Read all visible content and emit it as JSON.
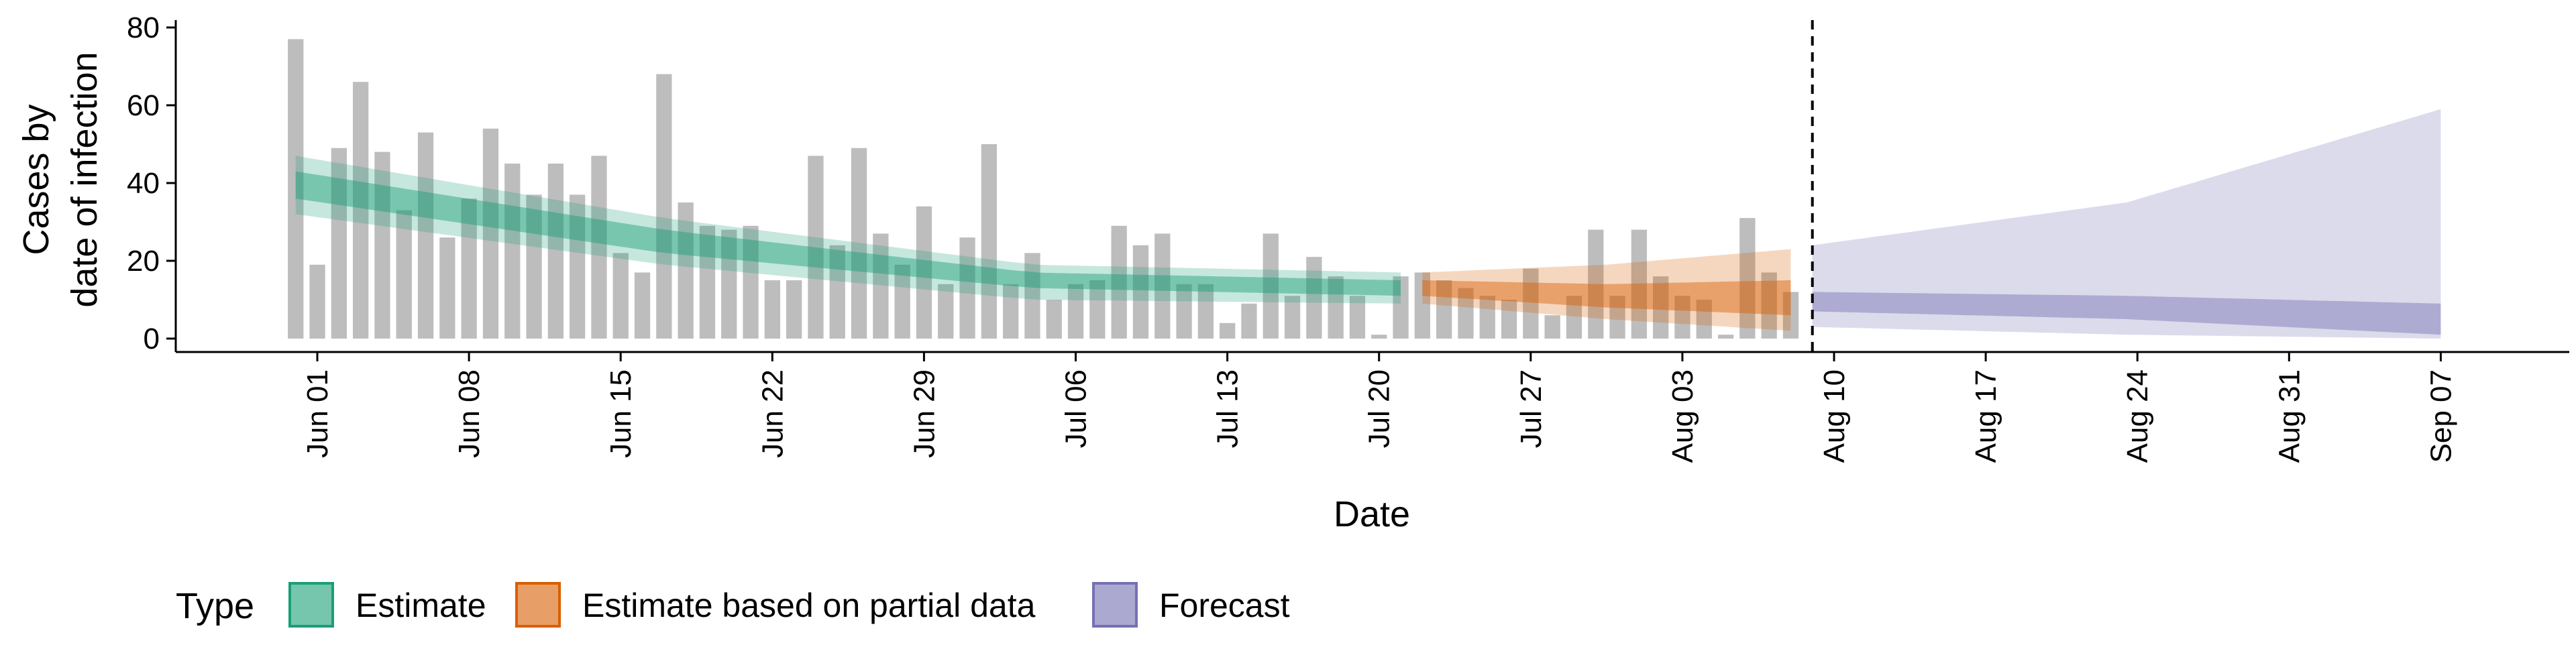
{
  "chart_data": {
    "type": "bar",
    "title": "",
    "xlabel": "Date",
    "ylabel_lines": [
      "Cases by",
      "date of infection"
    ],
    "ylim": [
      0,
      82
    ],
    "y_ticks": [
      0,
      20,
      40,
      60,
      80
    ],
    "x_tick_labels": [
      {
        "date": "2020-06-01",
        "label": "Jun 01"
      },
      {
        "date": "2020-06-08",
        "label": "Jun 08"
      },
      {
        "date": "2020-06-15",
        "label": "Jun 15"
      },
      {
        "date": "2020-06-22",
        "label": "Jun 22"
      },
      {
        "date": "2020-06-29",
        "label": "Jun 29"
      },
      {
        "date": "2020-07-06",
        "label": "Jul 06"
      },
      {
        "date": "2020-07-13",
        "label": "Jul 13"
      },
      {
        "date": "2020-07-20",
        "label": "Jul 20"
      },
      {
        "date": "2020-07-27",
        "label": "Jul 27"
      },
      {
        "date": "2020-08-03",
        "label": "Aug 03"
      },
      {
        "date": "2020-08-10",
        "label": "Aug 10"
      },
      {
        "date": "2020-08-17",
        "label": "Aug 17"
      },
      {
        "date": "2020-08-24",
        "label": "Aug 24"
      },
      {
        "date": "2020-08-31",
        "label": "Aug 31"
      },
      {
        "date": "2020-09-07",
        "label": "Sep 07"
      }
    ],
    "grid": false,
    "reported_cases": {
      "start_date": "2020-05-31",
      "values": [
        77,
        19,
        49,
        66,
        48,
        33,
        53,
        26,
        36,
        54,
        45,
        37,
        45,
        37,
        47,
        22,
        17,
        68,
        35,
        29,
        28,
        29,
        15,
        15,
        47,
        24,
        49,
        27,
        19,
        34,
        14,
        26,
        50,
        14,
        22,
        10,
        14,
        15,
        29,
        24,
        27,
        14,
        14,
        4,
        9,
        27,
        11,
        21,
        16,
        11,
        1,
        16,
        17,
        15,
        13,
        11,
        10,
        18,
        6,
        11,
        28,
        11,
        28,
        16,
        11,
        10,
        1,
        31,
        17,
        12
      ]
    },
    "vertical_line_date": "2020-08-09",
    "series": [
      {
        "name": "Estimate",
        "color": "#1B9E77",
        "start_date": "2020-05-31",
        "end_date": "2020-07-21",
        "median": [
          40,
          25,
          15,
          13
        ],
        "inner": [
          [
            36,
            43
          ],
          [
            22,
            28
          ],
          [
            13,
            17
          ],
          [
            11,
            15
          ]
        ],
        "outer": [
          [
            32,
            47
          ],
          [
            19,
            31
          ],
          [
            10,
            19
          ],
          [
            9,
            17
          ]
        ]
      },
      {
        "name": "Estimate based on partial data",
        "color": "#D95F02",
        "start_date": "2020-07-22",
        "end_date": "2020-08-08",
        "median": [
          13,
          11,
          10
        ],
        "inner": [
          [
            11,
            15
          ],
          [
            8,
            14
          ],
          [
            6,
            15
          ]
        ],
        "outer": [
          [
            9,
            17
          ],
          [
            5,
            19
          ],
          [
            2,
            23
          ]
        ]
      },
      {
        "name": "Forecast",
        "color": "#7570B3",
        "start_date": "2020-08-09",
        "end_date": "2020-09-07",
        "median": [
          10,
          8,
          5
        ],
        "inner": [
          [
            7,
            12
          ],
          [
            5,
            11
          ],
          [
            1,
            9
          ]
        ],
        "outer": [
          [
            3,
            24
          ],
          [
            1,
            35
          ],
          [
            0,
            59
          ]
        ]
      }
    ],
    "legend": {
      "position": "bottom",
      "title": "Type",
      "entries": [
        "Estimate",
        "Estimate based on partial data",
        "Forecast"
      ]
    }
  }
}
